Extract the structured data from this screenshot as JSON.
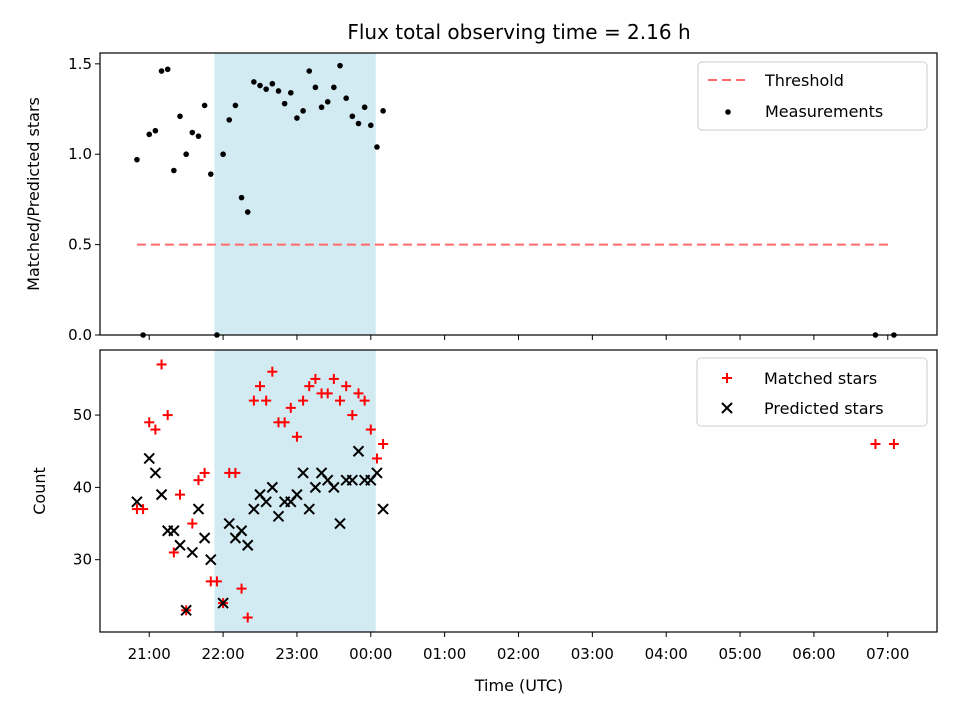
{
  "chart_data": [
    {
      "type": "scatter",
      "title": "Flux total observing time = 2.16 h",
      "ylabel": "Matched/Predicted stars",
      "xlabel": "",
      "xlim": [
        "20:20",
        "07:40"
      ],
      "ylim": [
        0,
        1.56
      ],
      "yticks": [
        "0.0",
        "0.5",
        "1.0",
        "1.5"
      ],
      "shaded_interval": {
        "start": "21:53",
        "end": "00:04",
        "color": "#add8e6"
      },
      "legend_position": "top-right",
      "threshold": {
        "name": "Threshold",
        "value": 0.5,
        "x_start": "20:50",
        "x_end": "07:03",
        "color": "#ff6b6b"
      },
      "measurements": {
        "name": "Measurements",
        "color": "#000000",
        "points": [
          [
            "20:50",
            0.97
          ],
          [
            "20:55",
            0.0
          ],
          [
            "21:00",
            1.11
          ],
          [
            "21:05",
            1.13
          ],
          [
            "21:10",
            1.46
          ],
          [
            "21:15",
            1.47
          ],
          [
            "21:20",
            0.91
          ],
          [
            "21:25",
            1.21
          ],
          [
            "21:30",
            1.0
          ],
          [
            "21:35",
            1.12
          ],
          [
            "21:40",
            1.1
          ],
          [
            "21:45",
            1.27
          ],
          [
            "21:50",
            0.89
          ],
          [
            "21:55",
            0.0
          ],
          [
            "22:00",
            1.0
          ],
          [
            "22:05",
            1.19
          ],
          [
            "22:10",
            1.27
          ],
          [
            "22:15",
            0.76
          ],
          [
            "22:20",
            0.68
          ],
          [
            "22:25",
            1.4
          ],
          [
            "22:30",
            1.38
          ],
          [
            "22:35",
            1.36
          ],
          [
            "22:40",
            1.39
          ],
          [
            "22:45",
            1.35
          ],
          [
            "22:50",
            1.28
          ],
          [
            "22:55",
            1.34
          ],
          [
            "23:00",
            1.2
          ],
          [
            "23:05",
            1.24
          ],
          [
            "23:10",
            1.46
          ],
          [
            "23:15",
            1.37
          ],
          [
            "23:20",
            1.26
          ],
          [
            "23:25",
            1.29
          ],
          [
            "23:30",
            1.37
          ],
          [
            "23:35",
            1.49
          ],
          [
            "23:40",
            1.31
          ],
          [
            "23:45",
            1.21
          ],
          [
            "23:50",
            1.17
          ],
          [
            "23:55",
            1.26
          ],
          [
            "00:00",
            1.16
          ],
          [
            "00:05",
            1.04
          ],
          [
            "00:10",
            1.24
          ],
          [
            "06:50",
            0.0
          ],
          [
            "07:05",
            0.0
          ]
        ]
      }
    },
    {
      "type": "scatter",
      "title": "",
      "xlabel": "Time (UTC)",
      "ylabel": "Count",
      "xlim": [
        "20:20",
        "07:40"
      ],
      "ylim": [
        20,
        59
      ],
      "yticks": [
        "30",
        "40",
        "50"
      ],
      "xticks": [
        "21:00",
        "22:00",
        "23:00",
        "00:00",
        "01:00",
        "02:00",
        "03:00",
        "04:00",
        "05:00",
        "06:00",
        "07:00"
      ],
      "shaded_interval": {
        "start": "21:53",
        "end": "00:04",
        "color": "#add8e6"
      },
      "legend_position": "top-right",
      "series": [
        {
          "name": "Matched stars",
          "marker": "plus",
          "color": "#ff0000",
          "points": [
            [
              "20:50",
              37
            ],
            [
              "20:55",
              37
            ],
            [
              "21:00",
              49
            ],
            [
              "21:05",
              48
            ],
            [
              "21:10",
              57
            ],
            [
              "21:15",
              50
            ],
            [
              "21:20",
              31
            ],
            [
              "21:25",
              39
            ],
            [
              "21:30",
              23
            ],
            [
              "21:35",
              35
            ],
            [
              "21:40",
              41
            ],
            [
              "21:45",
              42
            ],
            [
              "21:50",
              27
            ],
            [
              "21:55",
              27
            ],
            [
              "22:00",
              24
            ],
            [
              "22:05",
              42
            ],
            [
              "22:10",
              42
            ],
            [
              "22:15",
              26
            ],
            [
              "22:20",
              22
            ],
            [
              "22:25",
              52
            ],
            [
              "22:30",
              54
            ],
            [
              "22:35",
              52
            ],
            [
              "22:40",
              56
            ],
            [
              "22:45",
              49
            ],
            [
              "22:50",
              49
            ],
            [
              "22:55",
              51
            ],
            [
              "23:00",
              47
            ],
            [
              "23:05",
              52
            ],
            [
              "23:10",
              54
            ],
            [
              "23:15",
              55
            ],
            [
              "23:20",
              53
            ],
            [
              "23:25",
              53
            ],
            [
              "23:30",
              55
            ],
            [
              "23:35",
              52
            ],
            [
              "23:40",
              54
            ],
            [
              "23:45",
              50
            ],
            [
              "23:50",
              53
            ],
            [
              "23:55",
              52
            ],
            [
              "00:00",
              48
            ],
            [
              "00:05",
              44
            ],
            [
              "00:10",
              46
            ],
            [
              "06:50",
              46
            ],
            [
              "07:05",
              46
            ]
          ]
        },
        {
          "name": "Predicted stars",
          "marker": "x",
          "color": "#000000",
          "points": [
            [
              "20:50",
              38
            ],
            [
              "21:00",
              44
            ],
            [
              "21:05",
              42
            ],
            [
              "21:10",
              39
            ],
            [
              "21:15",
              34
            ],
            [
              "21:20",
              34
            ],
            [
              "21:25",
              32
            ],
            [
              "21:30",
              23
            ],
            [
              "21:35",
              31
            ],
            [
              "21:40",
              37
            ],
            [
              "21:45",
              33
            ],
            [
              "21:50",
              30
            ],
            [
              "22:00",
              24
            ],
            [
              "22:05",
              35
            ],
            [
              "22:10",
              33
            ],
            [
              "22:15",
              34
            ],
            [
              "22:20",
              32
            ],
            [
              "22:25",
              37
            ],
            [
              "22:30",
              39
            ],
            [
              "22:35",
              38
            ],
            [
              "22:40",
              40
            ],
            [
              "22:45",
              36
            ],
            [
              "22:50",
              38
            ],
            [
              "22:55",
              38
            ],
            [
              "23:00",
              39
            ],
            [
              "23:05",
              42
            ],
            [
              "23:10",
              37
            ],
            [
              "23:15",
              40
            ],
            [
              "23:20",
              42
            ],
            [
              "23:25",
              41
            ],
            [
              "23:30",
              40
            ],
            [
              "23:35",
              35
            ],
            [
              "23:40",
              41
            ],
            [
              "23:45",
              41
            ],
            [
              "23:50",
              45
            ],
            [
              "23:55",
              41
            ],
            [
              "00:00",
              41
            ],
            [
              "00:05",
              42
            ],
            [
              "00:10",
              37
            ]
          ]
        }
      ]
    }
  ]
}
